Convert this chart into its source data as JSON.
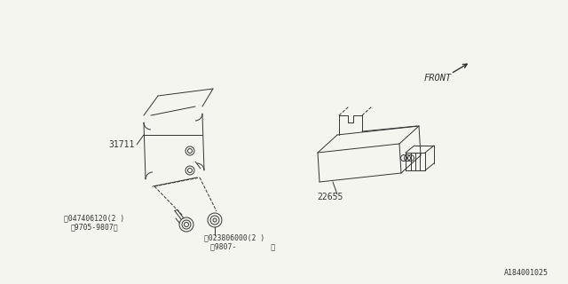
{
  "bg_color": "#f5f5f0",
  "line_color": "#333333",
  "part_number_bottom_right": "A184001025",
  "part_31711_label": "31711",
  "part_22655_label": "22655",
  "screw_s_label": "Ⓢ047406120(2 )",
  "screw_s_sub": "（9705-9807）",
  "screw_n_label": "Ⓝ023806000(2 )",
  "screw_n_sub": "（9807-        ）",
  "front_label": "FRONT"
}
